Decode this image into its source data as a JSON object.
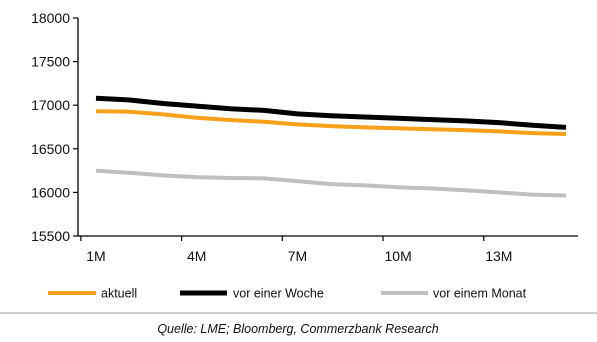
{
  "chart_data": {
    "type": "line",
    "x": [
      "1M",
      "2M",
      "3M",
      "4M",
      "5M",
      "6M",
      "7M",
      "8M",
      "9M",
      "10M",
      "11M",
      "12M",
      "13M",
      "14M",
      "15M"
    ],
    "x_tick_labels": [
      "1M",
      "4M",
      "7M",
      "10M",
      "13M"
    ],
    "y_ticks": [
      15500,
      16000,
      16500,
      17000,
      17500,
      18000
    ],
    "ylim": [
      15500,
      18000
    ],
    "grid": false,
    "legend_position": "bottom",
    "series": [
      {
        "name": "aktuell",
        "color": "#F7A01A",
        "values": [
          16930,
          16925,
          16895,
          16855,
          16830,
          16810,
          16780,
          16760,
          16745,
          16735,
          16725,
          16715,
          16700,
          16680,
          16670
        ]
      },
      {
        "name": "vor einer Woche",
        "color": "#000000",
        "values": [
          17080,
          17060,
          17020,
          16990,
          16960,
          16940,
          16900,
          16880,
          16865,
          16850,
          16835,
          16820,
          16800,
          16770,
          16745
        ]
      },
      {
        "name": "vor einem Monat",
        "color": "#BFBFBF",
        "values": [
          16250,
          16225,
          16195,
          16175,
          16165,
          16160,
          16130,
          16095,
          16080,
          16060,
          16045,
          16025,
          16000,
          15975,
          15965
        ]
      }
    ],
    "source": "Quelle: LME; Bloomberg, Commerzbank Research"
  }
}
